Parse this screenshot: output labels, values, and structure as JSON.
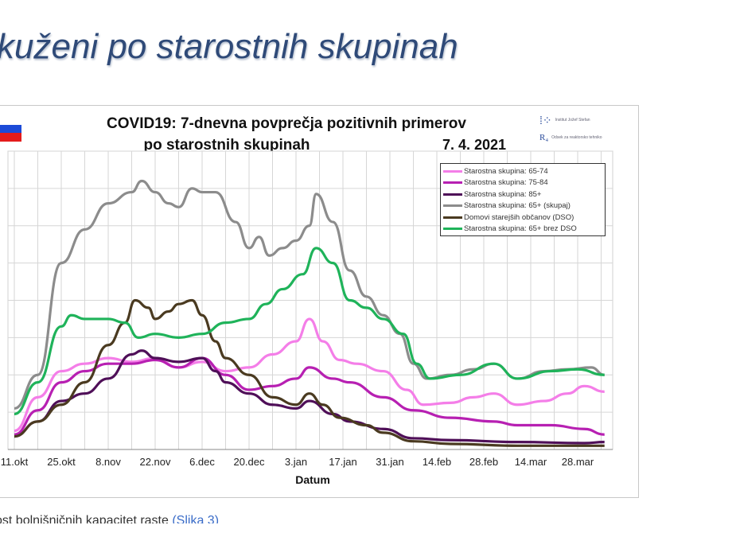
{
  "slide_title": "kuženi po starostnih skupinah",
  "footer": {
    "text": "ost bolnišničnih kapacitet raste ",
    "link": "(Slika 3)"
  },
  "logo": {
    "line1": "Institut Jožef Stefan",
    "line2": "Odsek za reaktorsko tehniko"
  },
  "colors": {
    "pink": "#f47ee8",
    "magenta": "#b720b2",
    "purple": "#4f0f58",
    "gray": "#8c8c8c",
    "brown": "#4a3a20",
    "green": "#1fb35a",
    "flag": [
      "#ffffff",
      "#1c4bd8",
      "#e41b1b"
    ]
  },
  "chart_data": {
    "type": "line",
    "title_line1": "COVID19: 7-dnevna povprečja pozitivnih primerov",
    "title_line2": "po starostnih skupinah",
    "date": "7. 4. 2021",
    "xlabel": "Datum",
    "ylabel": "",
    "x_unit": "days since 11.okt",
    "xlim": [
      -2,
      178
    ],
    "ylim": [
      0,
      8
    ],
    "y_unit": "relative (gridline units, axis labels not visible)",
    "grid": true,
    "legend_position": "top-right",
    "x_ticks": [
      {
        "day": 0,
        "label": "11.okt"
      },
      {
        "day": 14,
        "label": "25.okt"
      },
      {
        "day": 28,
        "label": "8.nov"
      },
      {
        "day": 42,
        "label": "22.nov"
      },
      {
        "day": 56,
        "label": "6.dec"
      },
      {
        "day": 70,
        "label": "20.dec"
      },
      {
        "day": 84,
        "label": "3.jan"
      },
      {
        "day": 98,
        "label": "17.jan"
      },
      {
        "day": 112,
        "label": "31.jan"
      },
      {
        "day": 126,
        "label": "14.feb"
      },
      {
        "day": 140,
        "label": "28.feb"
      },
      {
        "day": 154,
        "label": "14.mar"
      },
      {
        "day": 168,
        "label": "28.mar"
      }
    ],
    "series": [
      {
        "name": "Starostna skupina: 65-74",
        "color": "#f47ee8",
        "x": [
          0,
          7,
          14,
          21,
          28,
          35,
          42,
          49,
          56,
          63,
          70,
          77,
          84,
          88,
          92,
          97,
          102,
          110,
          117,
          122,
          130,
          137,
          143,
          150,
          158,
          165,
          170,
          176
        ],
        "y": [
          0.5,
          1.4,
          2.1,
          2.3,
          2.45,
          2.35,
          2.45,
          2.2,
          2.35,
          2.1,
          2.2,
          2.55,
          2.9,
          3.5,
          2.9,
          2.4,
          2.3,
          2.1,
          1.6,
          1.2,
          1.25,
          1.4,
          1.5,
          1.2,
          1.3,
          1.5,
          1.7,
          1.55
        ]
      },
      {
        "name": "Starostna skupina: 75-84",
        "color": "#b720b2",
        "x": [
          0,
          7,
          14,
          21,
          28,
          35,
          42,
          49,
          56,
          63,
          70,
          77,
          84,
          88,
          95,
          100,
          110,
          119,
          130,
          143,
          150,
          160,
          170,
          176
        ],
        "y": [
          0.4,
          1.05,
          1.8,
          2.1,
          2.3,
          2.3,
          2.4,
          2.2,
          2.45,
          2.0,
          1.6,
          1.7,
          1.9,
          2.2,
          1.9,
          1.8,
          1.4,
          1.05,
          0.85,
          0.75,
          0.65,
          0.65,
          0.55,
          0.4
        ]
      },
      {
        "name": "Starostna skupina: 85+",
        "color": "#4f0f58",
        "x": [
          0,
          7,
          14,
          21,
          28,
          35,
          38,
          42,
          49,
          56,
          60,
          63,
          70,
          77,
          84,
          88,
          95,
          100,
          110,
          119,
          130,
          150,
          170,
          176
        ],
        "y": [
          0.35,
          0.75,
          1.3,
          1.5,
          1.9,
          2.55,
          2.65,
          2.45,
          2.35,
          2.45,
          2.1,
          1.8,
          1.5,
          1.2,
          1.1,
          1.3,
          0.95,
          0.75,
          0.55,
          0.3,
          0.25,
          0.2,
          0.17,
          0.2
        ]
      },
      {
        "name": "Starostna skupina: 65+ (skupaj)",
        "color": "#8c8c8c",
        "x": [
          0,
          7,
          14,
          21,
          28,
          35,
          38,
          42,
          46,
          49,
          53,
          56,
          60,
          66,
          70,
          73,
          76,
          80,
          84,
          88,
          90,
          95,
          100,
          105,
          110,
          115,
          119,
          123,
          130,
          137,
          143,
          150,
          158,
          165,
          172,
          176
        ],
        "y": [
          1.1,
          2.0,
          5.0,
          5.9,
          6.6,
          6.9,
          7.2,
          6.9,
          6.6,
          6.5,
          7.0,
          6.9,
          6.9,
          6.1,
          5.4,
          5.7,
          5.2,
          5.4,
          5.6,
          6.0,
          6.85,
          6.1,
          4.8,
          4.1,
          3.6,
          3.1,
          2.3,
          1.9,
          2.0,
          2.15,
          2.3,
          1.9,
          2.1,
          2.15,
          2.2,
          2.0
        ]
      },
      {
        "name": "Domovi starejših občanov (DSO)",
        "color": "#4a3a20",
        "x": [
          0,
          7,
          14,
          21,
          28,
          33,
          36,
          40,
          42,
          46,
          49,
          53,
          56,
          60,
          63,
          70,
          77,
          84,
          88,
          92,
          97,
          105,
          110,
          119,
          130,
          150,
          176
        ],
        "y": [
          0.35,
          0.75,
          1.2,
          1.8,
          2.8,
          3.4,
          4.0,
          3.8,
          3.5,
          3.7,
          3.9,
          4.0,
          3.6,
          2.9,
          2.45,
          2.0,
          1.4,
          1.2,
          1.5,
          1.2,
          0.85,
          0.65,
          0.45,
          0.22,
          0.15,
          0.1,
          0.1
        ]
      },
      {
        "name": "Starostna skupina: 65+ brez DSO",
        "color": "#1fb35a",
        "x": [
          0,
          7,
          14,
          17,
          21,
          28,
          33,
          37,
          42,
          49,
          56,
          63,
          70,
          75,
          80,
          86,
          90,
          95,
          100,
          105,
          110,
          116,
          120,
          124,
          133,
          143,
          150,
          160,
          168,
          176
        ],
        "y": [
          0.95,
          1.8,
          3.3,
          3.6,
          3.5,
          3.5,
          3.4,
          3.0,
          3.1,
          3.0,
          3.1,
          3.4,
          3.5,
          3.9,
          4.3,
          4.7,
          5.4,
          5.0,
          4.0,
          3.8,
          3.5,
          3.1,
          2.3,
          1.9,
          2.0,
          2.3,
          1.9,
          2.1,
          2.15,
          2.0
        ]
      }
    ]
  }
}
